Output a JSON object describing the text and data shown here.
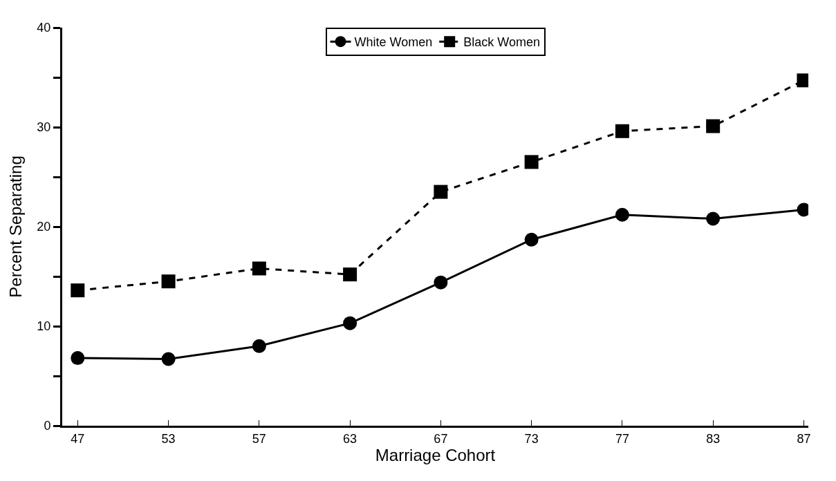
{
  "chart_data": {
    "type": "line",
    "xlabel": "Marriage Cohort",
    "ylabel": "Percent Separating",
    "categories": [
      "47",
      "53",
      "57",
      "63",
      "67",
      "73",
      "77",
      "83",
      "87"
    ],
    "series": [
      {
        "name": "White Women",
        "color": "#000000",
        "marker": "circle",
        "line_style": "solid",
        "values": [
          6.8,
          6.7,
          8.0,
          10.3,
          14.4,
          18.7,
          21.2,
          20.8,
          21.7
        ]
      },
      {
        "name": "Black Women",
        "color": "#000000",
        "marker": "square",
        "line_style": "dashed",
        "values": [
          13.6,
          14.5,
          15.8,
          15.2,
          23.5,
          26.5,
          29.6,
          30.1,
          34.7
        ]
      }
    ],
    "ylim": [
      0,
      40
    ],
    "yticks": [
      0,
      {
        "value": 5,
        "label": null
      },
      10,
      {
        "value": 15,
        "label": null
      },
      20,
      {
        "value": 25,
        "label": null
      },
      30,
      {
        "value": 35,
        "label": null
      },
      40
    ],
    "legend": "top"
  }
}
